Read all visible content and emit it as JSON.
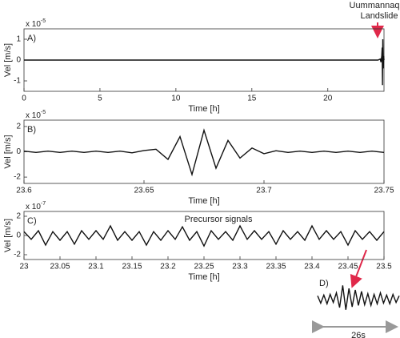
{
  "chart_data": [
    {
      "type": "line",
      "panel_label": "A)",
      "x_label": "Time [h]",
      "y_label": "Vel [m/s]",
      "scale_base": "x 10",
      "scale_exp": "-5",
      "annotations": [
        "Uummannaq",
        "Landslide"
      ],
      "color": "#111",
      "x": [
        0,
        5,
        10,
        15,
        20,
        23.3,
        23.45,
        23.5,
        23.55,
        23.58,
        23.6,
        23.62,
        23.65,
        23.68,
        23.7
      ],
      "values": [
        0,
        0,
        0,
        0,
        0,
        0,
        0.05,
        -0.1,
        0.2,
        0.6,
        -1.2,
        1.0,
        -0.4,
        0.2,
        0
      ],
      "xlim": [
        0,
        23.7
      ],
      "xticks": [
        0,
        5,
        10,
        15,
        20
      ],
      "ylim": [
        -1.5,
        1.5
      ],
      "yticks": [
        -1,
        0,
        1
      ]
    },
    {
      "type": "line",
      "panel_label": "B)",
      "x_label": "Time [h]",
      "y_label": "Vel [m/s]",
      "scale_base": "x 10",
      "scale_exp": "-5",
      "color": "#111",
      "x": [
        23.6,
        23.605,
        23.61,
        23.615,
        23.62,
        23.625,
        23.63,
        23.635,
        23.64,
        23.645,
        23.65,
        23.655,
        23.66,
        23.665,
        23.67,
        23.675,
        23.68,
        23.685,
        23.69,
        23.695,
        23.7,
        23.705,
        23.71,
        23.715,
        23.72,
        23.725,
        23.73,
        23.735,
        23.74,
        23.745,
        23.75
      ],
      "values": [
        0.05,
        -0.05,
        0.05,
        -0.05,
        0.05,
        -0.05,
        0.05,
        -0.05,
        0.05,
        -0.08,
        0.1,
        0.2,
        -0.6,
        1.2,
        -1.8,
        1.7,
        -1.3,
        0.9,
        -0.5,
        0.3,
        -0.15,
        0.08,
        -0.05,
        0.05,
        -0.05,
        0.05,
        -0.05,
        0.05,
        -0.05,
        0.05,
        -0.05
      ],
      "xlim": [
        23.6,
        23.75
      ],
      "xticks": [
        23.6,
        23.65,
        23.7,
        23.75
      ],
      "ylim": [
        -2.5,
        2.5
      ],
      "yticks": [
        -2,
        0,
        2
      ]
    },
    {
      "type": "line",
      "panel_label": "C)",
      "x_label": "Time [h]",
      "y_label": "Vel [m/s]",
      "scale_base": "x 10",
      "scale_exp": "-7",
      "color": "#111",
      "annotations": [
        "Precursor signals"
      ],
      "x": [
        23,
        23.01,
        23.02,
        23.03,
        23.04,
        23.05,
        23.06,
        23.07,
        23.08,
        23.09,
        23.1,
        23.11,
        23.12,
        23.13,
        23.14,
        23.15,
        23.16,
        23.17,
        23.18,
        23.19,
        23.2,
        23.21,
        23.22,
        23.23,
        23.24,
        23.25,
        23.26,
        23.27,
        23.28,
        23.29,
        23.3,
        23.31,
        23.32,
        23.33,
        23.34,
        23.35,
        23.36,
        23.37,
        23.38,
        23.39,
        23.4,
        23.41,
        23.42,
        23.43,
        23.44,
        23.45,
        23.46,
        23.47,
        23.48,
        23.49,
        23.5
      ],
      "values": [
        0.4,
        -0.4,
        0.5,
        -1.0,
        0.4,
        -0.5,
        0.4,
        -0.9,
        0.5,
        -0.4,
        0.5,
        -0.4,
        1.0,
        -0.5,
        0.4,
        -0.5,
        0.4,
        -1.0,
        0.4,
        -0.5,
        0.5,
        -0.4,
        0.9,
        -0.5,
        0.4,
        -1.1,
        0.5,
        -0.4,
        0.4,
        -0.5,
        1.0,
        -0.4,
        0.5,
        -0.4,
        0.4,
        -0.9,
        0.5,
        -0.4,
        0.4,
        -0.5,
        1.0,
        -0.4,
        0.5,
        -0.4,
        0.4,
        -1.0,
        0.5,
        -0.4,
        0.4,
        -0.5,
        0.4
      ],
      "xlim": [
        23,
        23.5
      ],
      "xticks": [
        23,
        23.05,
        23.1,
        23.15,
        23.2,
        23.25,
        23.3,
        23.35,
        23.4,
        23.45,
        23.5
      ],
      "ylim": [
        -2.5,
        2.5
      ],
      "yticks": [
        -2,
        0,
        2
      ]
    },
    {
      "type": "line",
      "panel_label": "D)",
      "duration_label": "26s",
      "color": "#111",
      "x": [
        0,
        1,
        2,
        3,
        4,
        5,
        6,
        7,
        8,
        9,
        10,
        11,
        12,
        13,
        14,
        15,
        16,
        17,
        18,
        19,
        20,
        21,
        22,
        23,
        24,
        25,
        26
      ],
      "values": [
        0.4,
        -0.6,
        0.5,
        -0.7,
        0.6,
        -0.5,
        0.8,
        -1.2,
        1.8,
        -1.5,
        1.4,
        -1.1,
        1.2,
        -0.9,
        1.0,
        -0.8,
        0.7,
        -0.9,
        0.6,
        -0.7,
        0.8,
        -0.6,
        0.5,
        -0.7,
        0.6,
        -0.5,
        0.4
      ],
      "xlim": [
        0,
        26
      ],
      "ylim": [
        -2.5,
        2.5
      ]
    }
  ]
}
